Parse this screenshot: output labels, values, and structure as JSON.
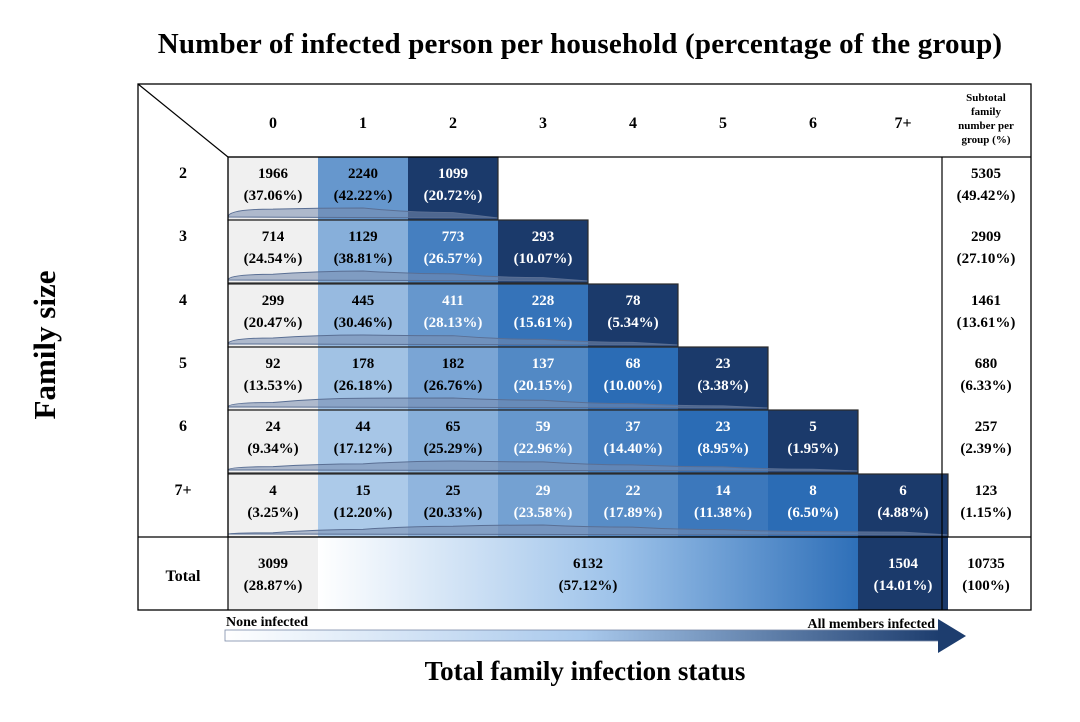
{
  "title": "Number of infected person per household (percentage of the group)",
  "ylabel": "Family size",
  "xlabel": "Total family infection status",
  "chart_data": {
    "type": "table",
    "title": "Number of infected person per household (percentage of the group)",
    "xlabel": "Total family infection status",
    "ylabel": "Family size",
    "columns": [
      "0",
      "1",
      "2",
      "3",
      "4",
      "5",
      "6",
      "7+"
    ],
    "subtotal_header": "Subtotal family number per group (%)",
    "rows": [
      {
        "label": "2",
        "counts": [
          1966,
          2240,
          1099
        ],
        "percents": [
          "37.06%",
          "42.22%",
          "20.72%"
        ],
        "subtotal": 5305,
        "subtotal_pct": "49.42%"
      },
      {
        "label": "3",
        "counts": [
          714,
          1129,
          773,
          293
        ],
        "percents": [
          "24.54%",
          "38.81%",
          "26.57%",
          "10.07%"
        ],
        "subtotal": 2909,
        "subtotal_pct": "27.10%"
      },
      {
        "label": "4",
        "counts": [
          299,
          445,
          411,
          228,
          78
        ],
        "percents": [
          "20.47%",
          "30.46%",
          "28.13%",
          "15.61%",
          "5.34%"
        ],
        "subtotal": 1461,
        "subtotal_pct": "13.61%"
      },
      {
        "label": "5",
        "counts": [
          92,
          178,
          182,
          137,
          68,
          23
        ],
        "percents": [
          "13.53%",
          "26.18%",
          "26.76%",
          "20.15%",
          "10.00%",
          "3.38%"
        ],
        "subtotal": 680,
        "subtotal_pct": "6.33%"
      },
      {
        "label": "6",
        "counts": [
          24,
          44,
          65,
          59,
          37,
          23,
          5
        ],
        "percents": [
          "9.34%",
          "17.12%",
          "25.29%",
          "22.96%",
          "14.40%",
          "8.95%",
          "1.95%"
        ],
        "subtotal": 257,
        "subtotal_pct": "2.39%"
      },
      {
        "label": "7+",
        "counts": [
          4,
          15,
          25,
          29,
          22,
          14,
          8,
          6
        ],
        "percents": [
          "3.25%",
          "12.20%",
          "20.33%",
          "23.58%",
          "17.89%",
          "11.38%",
          "6.50%",
          "4.88%"
        ],
        "subtotal": 123,
        "subtotal_pct": "1.15%"
      }
    ],
    "total": {
      "label": "Total",
      "none_infected": {
        "count": 3099,
        "pct": "28.87%"
      },
      "partially_infected": {
        "count": 6132,
        "pct": "57.12%"
      },
      "all_infected": {
        "count": 1504,
        "pct": "14.01%"
      },
      "grand_total": {
        "count": 10735,
        "pct": "100%"
      }
    },
    "status_labels": {
      "left": "None infected",
      "right": "All members infected"
    },
    "colors": {
      "light": "#f1f1f1",
      "dark": "#1b3a6b",
      "mid": "#2b6cb5",
      "pale": "#a9c9ec"
    }
  }
}
